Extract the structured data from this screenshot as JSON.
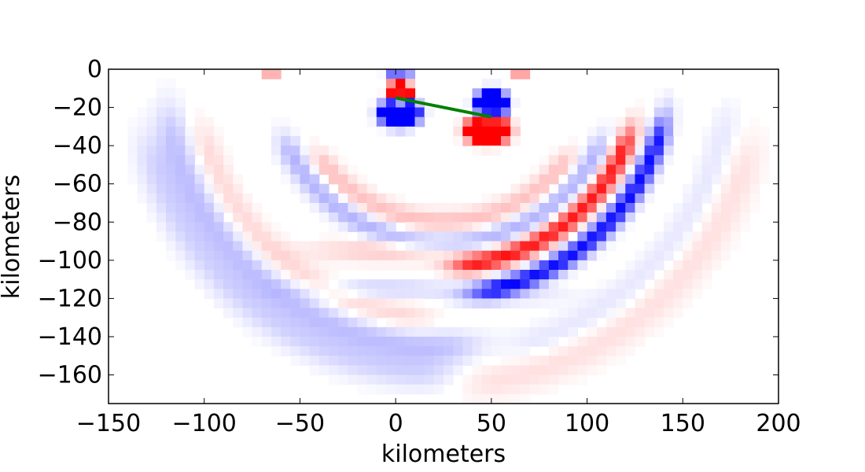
{
  "chart_data": {
    "type": "heatmap",
    "title": "",
    "xlabel": "kilometers",
    "ylabel": "kilometers",
    "xlim": [
      -150,
      200
    ],
    "ylim": [
      -175,
      0
    ],
    "x_ticks": [
      -150,
      -100,
      -50,
      0,
      50,
      100,
      150,
      200
    ],
    "x_tick_labels": [
      "−150",
      "−100",
      "−50",
      "0",
      "50",
      "100",
      "150",
      "200"
    ],
    "y_ticks": [
      0,
      -20,
      -40,
      -60,
      -80,
      -100,
      -120,
      -140,
      -160
    ],
    "y_tick_labels": [
      "0",
      "−20",
      "−40",
      "−60",
      "−80",
      "−100",
      "−120",
      "−140",
      "−160"
    ],
    "grid": false,
    "colormap": {
      "negative": "#0000ff",
      "zero": "#ffffff",
      "positive": "#ff0000"
    },
    "fault_line": {
      "color": "#008000",
      "x": [
        0,
        50
      ],
      "y": [
        -15,
        -25
      ]
    },
    "features": [
      {
        "type": "blob",
        "cx": 2,
        "cy": -12,
        "rx": 6,
        "ry": 5,
        "value": 1.0
      },
      {
        "type": "blob",
        "cx": 2,
        "cy": -23,
        "rx": 10,
        "ry": 7,
        "value": -1.0
      },
      {
        "type": "blob",
        "cx": 50,
        "cy": -18,
        "rx": 8,
        "ry": 7,
        "value": -1.0
      },
      {
        "type": "blob",
        "cx": 48,
        "cy": -32,
        "rx": 11,
        "ry": 7,
        "value": 1.0
      },
      {
        "type": "blob",
        "cx": 2,
        "cy": -1,
        "rx": 7,
        "ry": 2,
        "value": -0.55
      },
      {
        "type": "blob",
        "cx": 65,
        "cy": -3,
        "rx": 5,
        "ry": 2,
        "value": 0.35
      },
      {
        "type": "blob",
        "cx": -65,
        "cy": -3,
        "rx": 4,
        "ry": 2,
        "value": 0.3
      },
      {
        "type": "arc",
        "cx": 25,
        "cy": 0,
        "r": 118,
        "w": 5,
        "value": -0.95,
        "a0": 20,
        "a1": 75
      },
      {
        "type": "arc",
        "cx": 25,
        "cy": 0,
        "r": 103,
        "w": 5,
        "value": 0.9,
        "a0": 25,
        "a1": 80
      },
      {
        "type": "arc",
        "cx": 25,
        "cy": 0,
        "r": 91,
        "w": 6,
        "value": -0.3,
        "a0": 30,
        "a1": 150
      },
      {
        "type": "arc",
        "cx": 25,
        "cy": 0,
        "r": 80,
        "w": 6,
        "value": 0.25,
        "a0": 40,
        "a1": 140
      },
      {
        "type": "arc",
        "cx": 25,
        "cy": 0,
        "r": 145,
        "w": 8,
        "value": -0.22,
        "a0": 90,
        "a1": 165
      },
      {
        "type": "arc",
        "cx": 25,
        "cy": 0,
        "r": 158,
        "w": 10,
        "value": -0.18,
        "a0": 95,
        "a1": 160
      },
      {
        "type": "arc",
        "cx": 25,
        "cy": 0,
        "r": 130,
        "w": 7,
        "value": 0.15,
        "a0": 100,
        "a1": 160
      },
      {
        "type": "arc",
        "cx": 25,
        "cy": 0,
        "r": 165,
        "w": 10,
        "value": 0.12,
        "a0": 20,
        "a1": 80
      },
      {
        "type": "arc",
        "cx": 25,
        "cy": 0,
        "r": 150,
        "w": 8,
        "value": -0.1,
        "a0": 15,
        "a1": 70
      },
      {
        "type": "band",
        "cx": 0,
        "cy": -95,
        "rx": 45,
        "ry": 6,
        "value": 0.22
      },
      {
        "type": "band",
        "cx": -10,
        "cy": -115,
        "rx": 40,
        "ry": 5,
        "value": -0.18
      },
      {
        "type": "band",
        "cx": 60,
        "cy": -118,
        "rx": 30,
        "ry": 5,
        "value": -0.12
      }
    ]
  }
}
